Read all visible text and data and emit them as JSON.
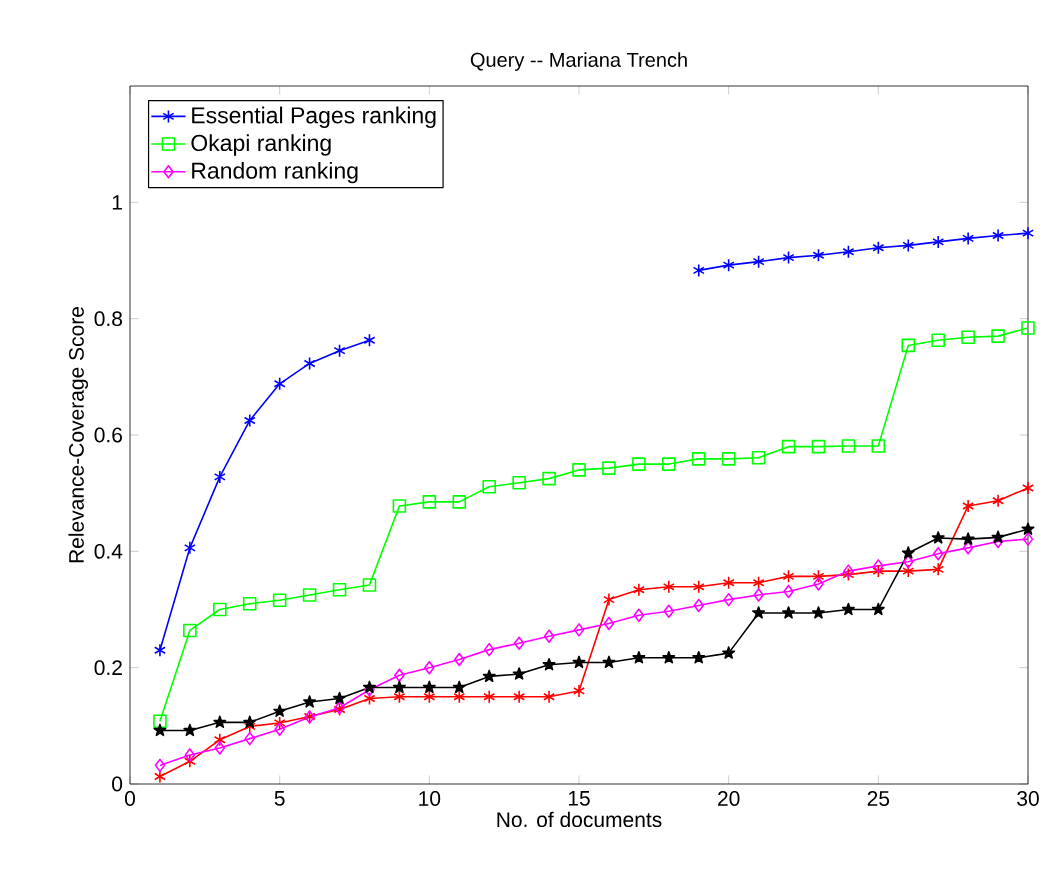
{
  "chart_data": {
    "type": "line",
    "title": "Query -- Mariana Trench",
    "xlabel": "No. of documents",
    "ylabel": "Relevance-Coverage Score",
    "x": [
      1,
      2,
      3,
      4,
      5,
      6,
      7,
      8,
      9,
      10,
      11,
      12,
      13,
      14,
      15,
      16,
      17,
      18,
      19,
      20,
      21,
      22,
      23,
      24,
      25,
      26,
      27,
      28,
      29,
      30
    ],
    "xlim": [
      0,
      30
    ],
    "xticks": [
      0,
      5,
      10,
      15,
      20,
      25,
      30
    ],
    "ylim": [
      0,
      1.2
    ],
    "yticks": [
      0,
      0.2,
      0.4,
      0.6,
      0.8,
      1
    ],
    "legend": "top left",
    "grid": false,
    "line_style": "solid",
    "series": [
      {
        "name": "Essential Pages ranking",
        "color": "#0000ff",
        "marker": "cross",
        "values": [
          0.23,
          0.406,
          0.528,
          0.625,
          0.688,
          0.723,
          0.745,
          0.763,
          null,
          null,
          null,
          null,
          null,
          null,
          null,
          null,
          null,
          null,
          0.883,
          0.892,
          0.898,
          0.905,
          0.909,
          0.915,
          0.922,
          0.926,
          0.932,
          0.938,
          0.943,
          0.947
        ]
      },
      {
        "color": "#ff0000",
        "marker": "cross",
        "values": [
          0.013,
          0.039,
          0.076,
          0.099,
          0.105,
          0.116,
          0.128,
          0.147,
          0.15,
          0.15,
          0.15,
          0.15,
          0.15,
          0.15,
          0.16,
          0.317,
          0.334,
          0.339,
          0.339,
          0.346,
          0.346,
          0.357,
          0.357,
          0.36,
          0.366,
          0.366,
          0.369,
          0.478,
          0.487,
          0.509
        ]
      },
      {
        "name": "Okapi ranking",
        "color": "#00ff00",
        "marker": "square",
        "values": [
          0.108,
          0.264,
          0.3,
          0.31,
          0.316,
          0.325,
          0.334,
          0.342,
          0.478,
          0.485,
          0.485,
          0.511,
          0.518,
          0.525,
          0.54,
          0.543,
          0.55,
          0.55,
          0.559,
          0.559,
          0.561,
          0.58,
          0.58,
          0.581,
          0.581,
          0.754,
          0.763,
          0.768,
          0.77,
          0.784
        ]
      },
      {
        "name": "Random ranking",
        "color": "#ff00ff",
        "marker": "diamond",
        "values": [
          0.032,
          0.05,
          0.062,
          0.078,
          0.094,
          0.115,
          0.131,
          0.162,
          0.187,
          0.2,
          0.214,
          0.231,
          0.242,
          0.254,
          0.265,
          0.276,
          0.29,
          0.297,
          0.307,
          0.317,
          0.325,
          0.331,
          0.344,
          0.366,
          0.375,
          0.382,
          0.396,
          0.406,
          0.417,
          0.421
        ]
      },
      {
        "color": "#000000",
        "marker": "star",
        "values": [
          0.092,
          0.092,
          0.106,
          0.106,
          0.125,
          0.141,
          0.147,
          0.166,
          0.166,
          0.166,
          0.166,
          0.185,
          0.189,
          0.205,
          0.209,
          0.209,
          0.217,
          0.217,
          0.217,
          0.225,
          0.294,
          0.294,
          0.294,
          0.3,
          0.3,
          0.397,
          0.423,
          0.421,
          0.424,
          0.438
        ]
      }
    ]
  }
}
